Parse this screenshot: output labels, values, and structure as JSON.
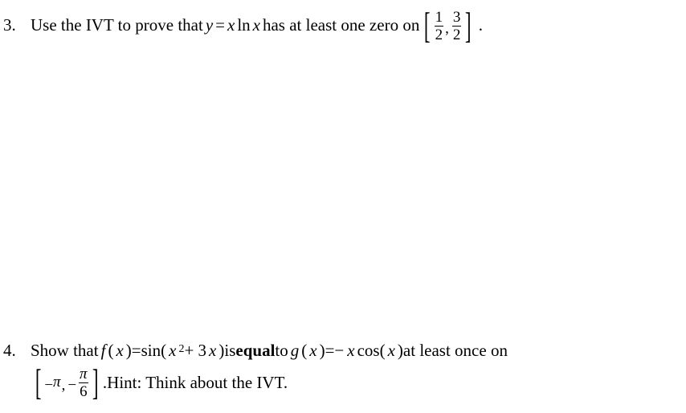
{
  "problem3": {
    "number": "3.",
    "text_before": "Use the IVT to prove that ",
    "eq_lhs_var": "y",
    "eq_op": " = ",
    "eq_rhs_x": "x",
    "eq_rhs_ln": " ln ",
    "eq_rhs_x2": "x",
    "text_after": " has at least one zero on ",
    "interval": {
      "frac1_num": "1",
      "frac1_den": "2",
      "comma": ",",
      "frac2_num": "3",
      "frac2_den": "2"
    },
    "period": "."
  },
  "problem4": {
    "number": "4.",
    "text_show": "Show that ",
    "f_name": "f",
    "f_paren_open": "(",
    "f_arg": "x",
    "f_paren_close": ")",
    "eq1": " = ",
    "sin": "sin",
    "sin_paren_open": "(",
    "sin_x": "x",
    "sin_sq": "2",
    "sin_plus": " + 3",
    "sin_x2": "x",
    "sin_paren_close": ")",
    "text_is": " is ",
    "equal": "equal",
    "text_to": " to ",
    "g_name": "g",
    "g_paren_open": "(",
    "g_arg": "x",
    "g_paren_close": ")",
    "eq2": " = ",
    "minus": "−",
    "g_x": "x",
    "cos": " cos",
    "cos_paren_open": "(",
    "cos_x": "x",
    "cos_paren_close": ")",
    "text_end": " at least once on",
    "interval": {
      "minus1": "−",
      "pi1": "π",
      "comma": ",",
      "minus2": "−",
      "frac_num": "π",
      "frac_den": "6"
    },
    "period1": ".",
    "hint_text": " Hint: Think about the IVT."
  },
  "colors": {
    "text": "#000000",
    "background": "#ffffff"
  },
  "font_sizes": {
    "body": 21,
    "bracket": 46,
    "frac": 19,
    "sup": 14
  }
}
